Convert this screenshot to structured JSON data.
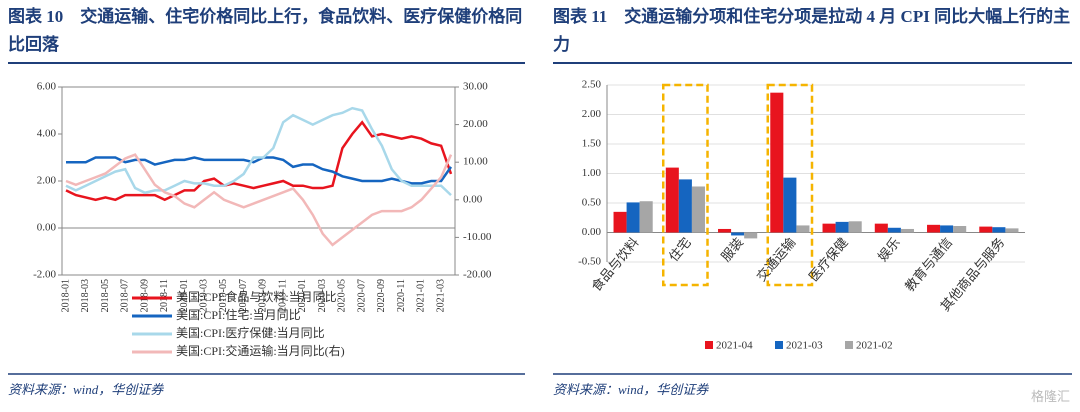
{
  "chart_data": [
    {
      "type": "line",
      "title": "图表 10　交通运输、住宅价格同比上行，食品饮料、医疗保健价格同比回落",
      "source": "资料来源：wind，华创证券",
      "categories": [
        "2018-01",
        null,
        "2018-03",
        null,
        "2018-05",
        null,
        "2018-07",
        null,
        "2018-09",
        null,
        "2018-11",
        null,
        "2019-01",
        null,
        "2019-03",
        null,
        "2019-05",
        null,
        "2019-07",
        null,
        "2019-09",
        null,
        "2019-11",
        null,
        "2020-01",
        null,
        "2020-03",
        null,
        "2020-05",
        null,
        "2020-07",
        null,
        "2020-09",
        null,
        "2020-11",
        null,
        "2021-01",
        null,
        "2021-03",
        null
      ],
      "ylim": [
        -2,
        6
      ],
      "yticks": [
        {
          "value": -2,
          "label": "-2.00"
        },
        {
          "value": 0,
          "label": "0.00"
        },
        {
          "value": 2,
          "label": "2.00"
        },
        {
          "value": 4,
          "label": "4.00"
        },
        {
          "value": 6,
          "label": "6.00"
        }
      ],
      "y2lim": [
        -20,
        30
      ],
      "y2ticks": [
        {
          "value": -20,
          "label": "-20.00"
        },
        {
          "value": -10,
          "label": "-10.00"
        },
        {
          "value": 0,
          "label": "0.00"
        },
        {
          "value": 10,
          "label": "10.00"
        },
        {
          "value": 20,
          "label": "20.00"
        },
        {
          "value": 30,
          "label": "30.00"
        }
      ],
      "series": [
        {
          "name": "美国:CPI:食品与饮料:当月同比",
          "color": "#e8141e",
          "values": [
            1.6,
            1.4,
            1.3,
            1.2,
            1.3,
            1.2,
            1.4,
            1.4,
            1.4,
            1.4,
            1.2,
            1.4,
            1.6,
            1.6,
            2.0,
            2.1,
            1.8,
            1.9,
            1.8,
            1.7,
            1.8,
            1.9,
            2.0,
            1.8,
            1.8,
            1.7,
            1.7,
            1.8,
            3.4,
            4.0,
            4.5,
            3.9,
            4.0,
            3.9,
            3.8,
            3.9,
            3.8,
            3.6,
            3.5,
            2.3
          ]
        },
        {
          "name": "美国:CPI:住宅:当月同比",
          "color": "#1565c0",
          "values": [
            2.8,
            2.8,
            2.8,
            3.0,
            3.0,
            3.0,
            2.8,
            2.9,
            2.9,
            2.7,
            2.8,
            2.9,
            2.9,
            3.0,
            2.9,
            2.9,
            2.9,
            2.9,
            2.9,
            2.8,
            3.0,
            3.0,
            2.9,
            2.6,
            2.7,
            2.7,
            2.5,
            2.4,
            2.2,
            2.1,
            2.0,
            2.0,
            2.0,
            2.1,
            2.0,
            1.9,
            1.9,
            2.0,
            2.0,
            2.6
          ]
        },
        {
          "name": "美国:CPI:医疗保健:当月同比",
          "color": "#a8d8ea",
          "values": [
            1.8,
            1.6,
            1.8,
            2.0,
            2.2,
            2.4,
            2.5,
            1.7,
            1.5,
            1.6,
            1.6,
            1.8,
            2.0,
            1.9,
            1.9,
            1.8,
            1.8,
            2.0,
            2.3,
            3.0,
            3.0,
            3.4,
            4.5,
            4.8,
            4.6,
            4.4,
            4.6,
            4.8,
            4.9,
            5.1,
            5.0,
            4.2,
            3.5,
            2.5,
            2.0,
            1.8,
            1.8,
            1.8,
            1.8,
            1.4
          ]
        },
        {
          "name": "美国:CPI:交通运输:当月同比(右)",
          "color": "#f2b8b8",
          "axis": "y2",
          "values": [
            5,
            4,
            5,
            6,
            7,
            9,
            11,
            12,
            8,
            4,
            2,
            1,
            -1,
            -2,
            0,
            2,
            0,
            -1,
            -2,
            -1,
            0,
            1,
            2,
            3,
            0,
            -4,
            -9,
            -12,
            -10,
            -8,
            -6,
            -4,
            -3,
            -3,
            -3,
            -2,
            0,
            3,
            6,
            12
          ]
        }
      ]
    },
    {
      "type": "bar",
      "title": "图表 11　交通运输分项和住宅分项是拉动 4 月 CPI 同比大幅上行的主力",
      "source": "资料来源：wind，华创证券",
      "categories": [
        "食品与饮料",
        "住宅",
        "服装",
        "交通运输",
        "医疗保健",
        "娱乐",
        "教育与通信",
        "其他商品与服务"
      ],
      "highlight_categories": [
        1,
        3
      ],
      "ylim": [
        -0.5,
        2.5
      ],
      "yticks": [
        {
          "value": -0.5,
          "label": "-0.50"
        },
        {
          "value": 0,
          "label": "0.00"
        },
        {
          "value": 0.5,
          "label": "0.50"
        },
        {
          "value": 1,
          "label": "1.00"
        },
        {
          "value": 1.5,
          "label": "1.50"
        },
        {
          "value": 2,
          "label": "2.00"
        },
        {
          "value": 2.5,
          "label": "2.50"
        }
      ],
      "grid": true,
      "series": [
        {
          "name": "2021-04",
          "color": "#e8141e",
          "values": [
            0.35,
            1.1,
            0.06,
            2.37,
            0.15,
            0.15,
            0.13,
            0.1
          ]
        },
        {
          "name": "2021-03",
          "color": "#1565c0",
          "values": [
            0.51,
            0.9,
            -0.05,
            0.93,
            0.18,
            0.08,
            0.12,
            0.09
          ]
        },
        {
          "name": "2021-02",
          "color": "#a6a6a6",
          "values": [
            0.53,
            0.78,
            -0.1,
            0.12,
            0.19,
            0.06,
            0.11,
            0.07
          ]
        }
      ]
    }
  ],
  "watermark": "格隆汇"
}
